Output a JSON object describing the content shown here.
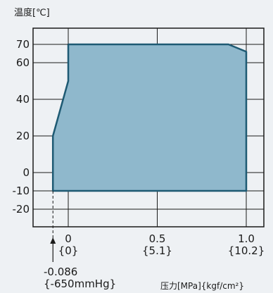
{
  "chart_data": {
    "type": "area",
    "ylabel": "温度[℃]",
    "xlabel": "压力[MPa]{kgf/cm²}",
    "xlim": [
      -0.086,
      1.0
    ],
    "ylim": [
      -20,
      70
    ],
    "x_ticks": [
      {
        "value": 0,
        "label": "0",
        "sublabel": "{0}"
      },
      {
        "value": 0.5,
        "label": "0.5",
        "sublabel": "{5.1}"
      },
      {
        "value": 1.0,
        "label": "1.0",
        "sublabel": "{10.2}"
      }
    ],
    "y_ticks": [
      {
        "value": 70,
        "label": "70"
      },
      {
        "value": 60,
        "label": "60"
      },
      {
        "value": 40,
        "label": "40"
      },
      {
        "value": 20,
        "label": "20"
      },
      {
        "value": 0,
        "label": "0"
      },
      {
        "value": -10,
        "label": "-10"
      },
      {
        "value": -20,
        "label": "-20"
      }
    ],
    "region": [
      {
        "x": -0.086,
        "y": -10
      },
      {
        "x": -0.086,
        "y": 20
      },
      {
        "x": 0,
        "y": 50
      },
      {
        "x": 0,
        "y": 70
      },
      {
        "x": 0.9,
        "y": 70
      },
      {
        "x": 1.0,
        "y": 66
      },
      {
        "x": 1.0,
        "y": -10
      }
    ],
    "vacuum_marker": {
      "x": -0.086,
      "label": "-0.086",
      "sublabel": "{-650mmHg}"
    },
    "fill_color": "#8fb8cc",
    "stroke_color": "#1e5a73",
    "grid": true
  }
}
